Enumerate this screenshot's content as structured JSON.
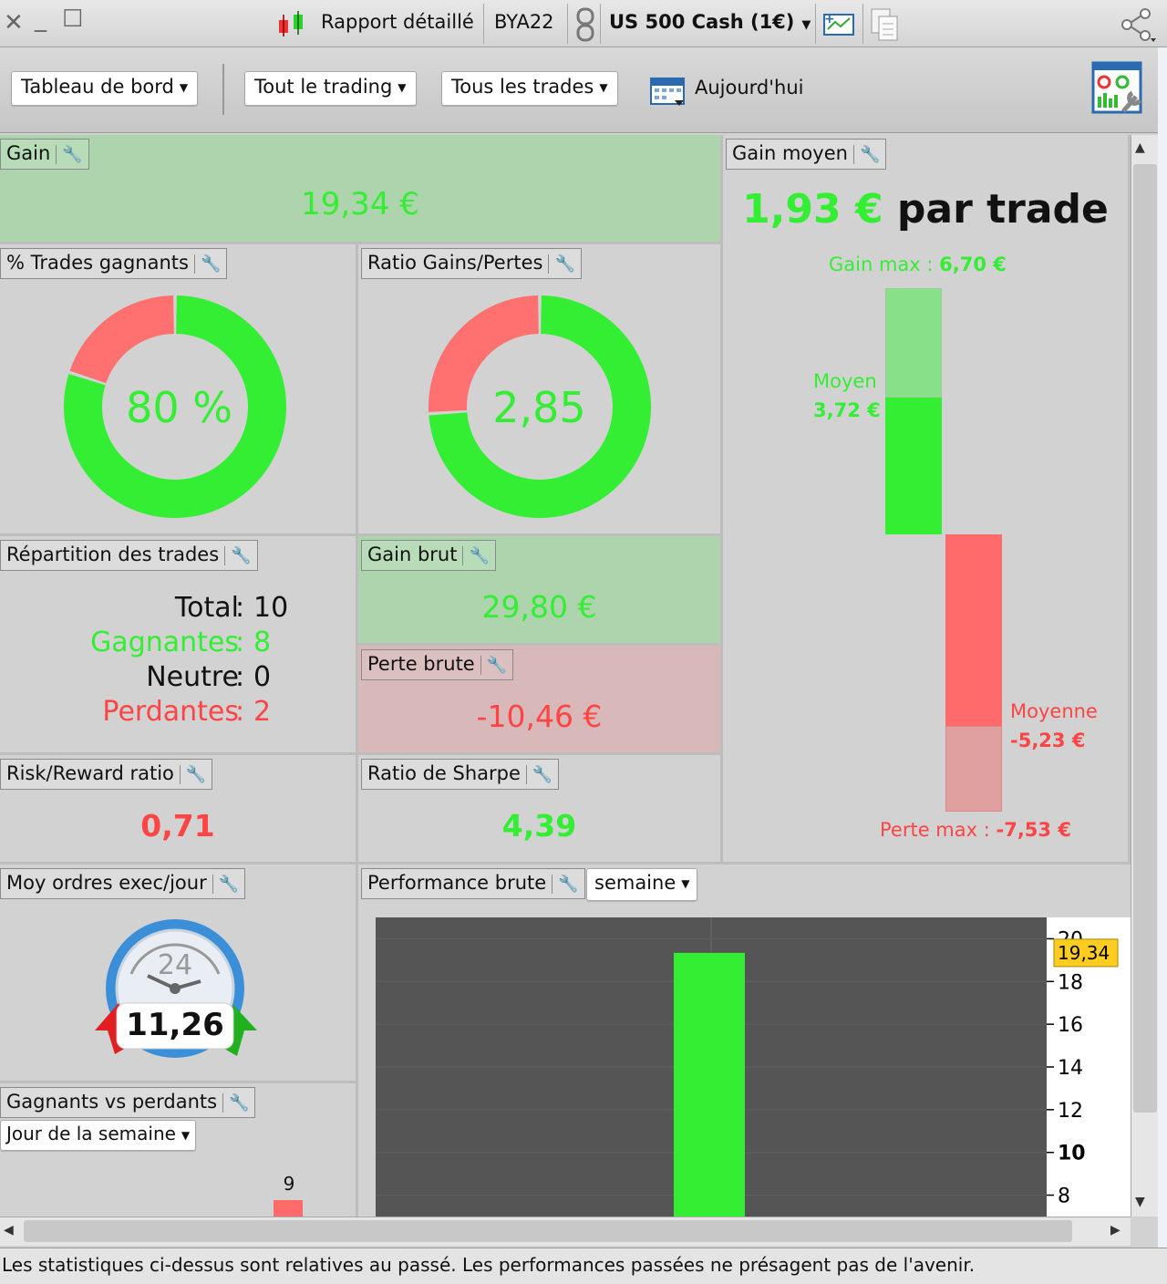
{
  "titlebar": {
    "report_label": "Rapport détaillé",
    "account": "BYA22",
    "instrument": "US 500 Cash (1€)"
  },
  "toolbar": {
    "dashboard": "Tableau de bord",
    "trading_filter": "Tout le trading",
    "trades_filter": "Tous les trades",
    "date_label": "Aujourd'hui"
  },
  "gain": {
    "title": "Gain",
    "value": "19,34 €"
  },
  "win_pct": {
    "title": "% Trades gagnants",
    "value": "80 %",
    "win_fraction": 0.8
  },
  "ratio_gp": {
    "title": "Ratio Gains/Pertes",
    "value": "2,85",
    "win_fraction": 0.74
  },
  "gain_moyen": {
    "title": "Gain moyen",
    "value": "1,93 €",
    "suffix": "par trade",
    "max_gain_label": "Gain max :",
    "max_gain": "6,70 €",
    "avg_gain_label": "Moyen",
    "avg_gain": "3,72 €",
    "avg_loss_label": "Moyenne",
    "avg_loss": "-5,23 €",
    "max_loss_label": "Perte max :",
    "max_loss": "-7,53 €"
  },
  "repartition": {
    "title": "Répartition des trades",
    "total_label": "Total",
    "total": "10",
    "win_label": "Gagnantes",
    "win": "8",
    "neutral_label": "Neutre",
    "neutral": "0",
    "loss_label": "Perdantes",
    "loss": "2"
  },
  "gain_brut": {
    "title": "Gain brut",
    "value": "29,80 €"
  },
  "perte_brute": {
    "title": "Perte brute",
    "value": "-10,46 €"
  },
  "risk_reward": {
    "title": "Risk/Reward ratio",
    "value": "0,71"
  },
  "sharpe": {
    "title": "Ratio de Sharpe",
    "value": "4,39"
  },
  "orders": {
    "title": "Moy ordres exec/jour",
    "clock_label": "24",
    "value": "11,26"
  },
  "gvp": {
    "title": "Gagnants vs perdants",
    "dropdown": "Jour de la semaine",
    "bar_label": "9"
  },
  "perf": {
    "title": "Performance brute",
    "period": "semaine",
    "current_value": "19,34"
  },
  "chart_data": {
    "type": "bar",
    "categories": [
      ""
    ],
    "values": [
      19.34
    ],
    "ylim": [
      7,
      21
    ],
    "yticks": [
      "20",
      "18",
      "16",
      "14",
      "12",
      "10",
      "8"
    ]
  },
  "status": "Les statistiques ci-dessus sont relatives au passé. Les performances passées ne présagent pas de l'avenir.",
  "colors": {
    "win": "#33ee33",
    "loss": "#ff6b6b",
    "gain_bg": "#add4ad",
    "loss_bg": "#d8b8b8",
    "chart_bg": "#555555"
  }
}
